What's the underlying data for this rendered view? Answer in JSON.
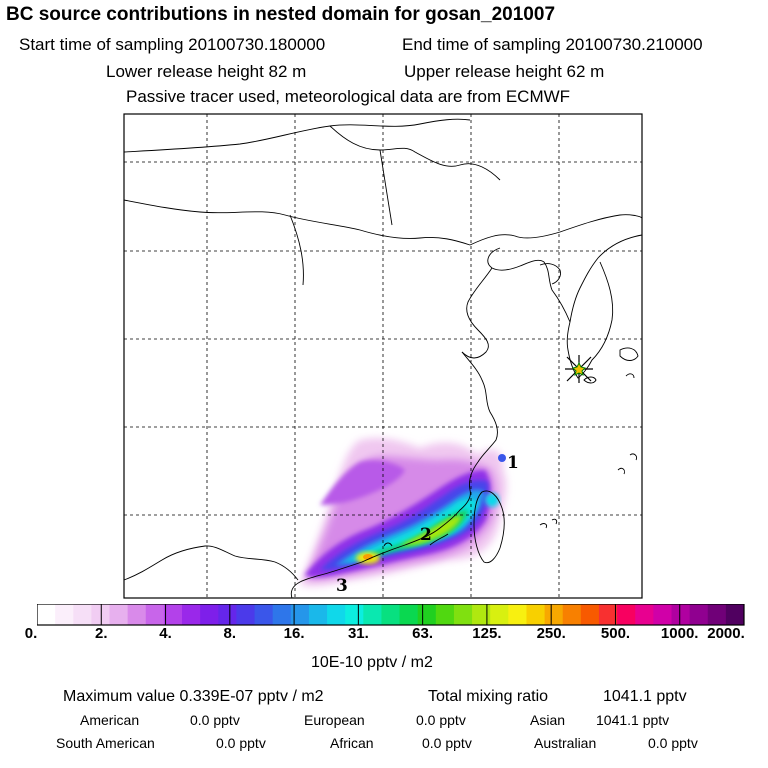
{
  "header": {
    "title": "BC  source contributions in nested domain for gosan_201007",
    "start_label": "Start time of sampling 20100730.180000",
    "end_label": "End time of sampling 20100730.210000",
    "lower_label": "Lower release height   82 m",
    "upper_label": "Upper release height   62 m",
    "note": "Passive tracer used, meteorological data are from ECMWF"
  },
  "map": {
    "markers": [
      "1",
      "2",
      "3"
    ],
    "receptor": "receptor-star"
  },
  "colorbar": {
    "colors": [
      "#ffffff",
      "#fbeffb",
      "#f6dff7",
      "#f1cdf3",
      "#e7b0ee",
      "#d98aea",
      "#c865ea",
      "#b341ea",
      "#9a28ea",
      "#7e1fea",
      "#6526ea",
      "#4b3aea",
      "#3a56ea",
      "#2e76ea",
      "#2596ea",
      "#1ab8ea",
      "#10d8ea",
      "#0ceee0",
      "#0ae8b0",
      "#08e080",
      "#0ad850",
      "#20d020",
      "#50d810",
      "#80e010",
      "#b0e810",
      "#d8f010",
      "#f8f010",
      "#f8d000",
      "#f8a800",
      "#f88000",
      "#f85a00",
      "#f83030",
      "#f80060",
      "#e80090",
      "#d000a8",
      "#b000a0",
      "#900090",
      "#700078",
      "#500060"
    ],
    "ticks": [
      "0.",
      "2.",
      "4.",
      "8.",
      "16.",
      "31.",
      "63.",
      "125.",
      "250.",
      "500.",
      "1000.",
      "2000."
    ],
    "unit": "10E-10 pptv / m2"
  },
  "summary": {
    "max_label": "Maximum value  0.339E-07 pptv / m2",
    "total_label": "Total mixing ratio",
    "total_value": "1041.1 pptv",
    "regions": [
      {
        "name": "American",
        "value": "0.0 pptv"
      },
      {
        "name": "European",
        "value": "0.0 pptv"
      },
      {
        "name": "Asian",
        "value": "1041.1 pptv"
      },
      {
        "name": "South American",
        "value": "0.0 pptv"
      },
      {
        "name": "African",
        "value": "0.0 pptv"
      },
      {
        "name": "Australian",
        "value": "0.0 pptv"
      }
    ]
  }
}
